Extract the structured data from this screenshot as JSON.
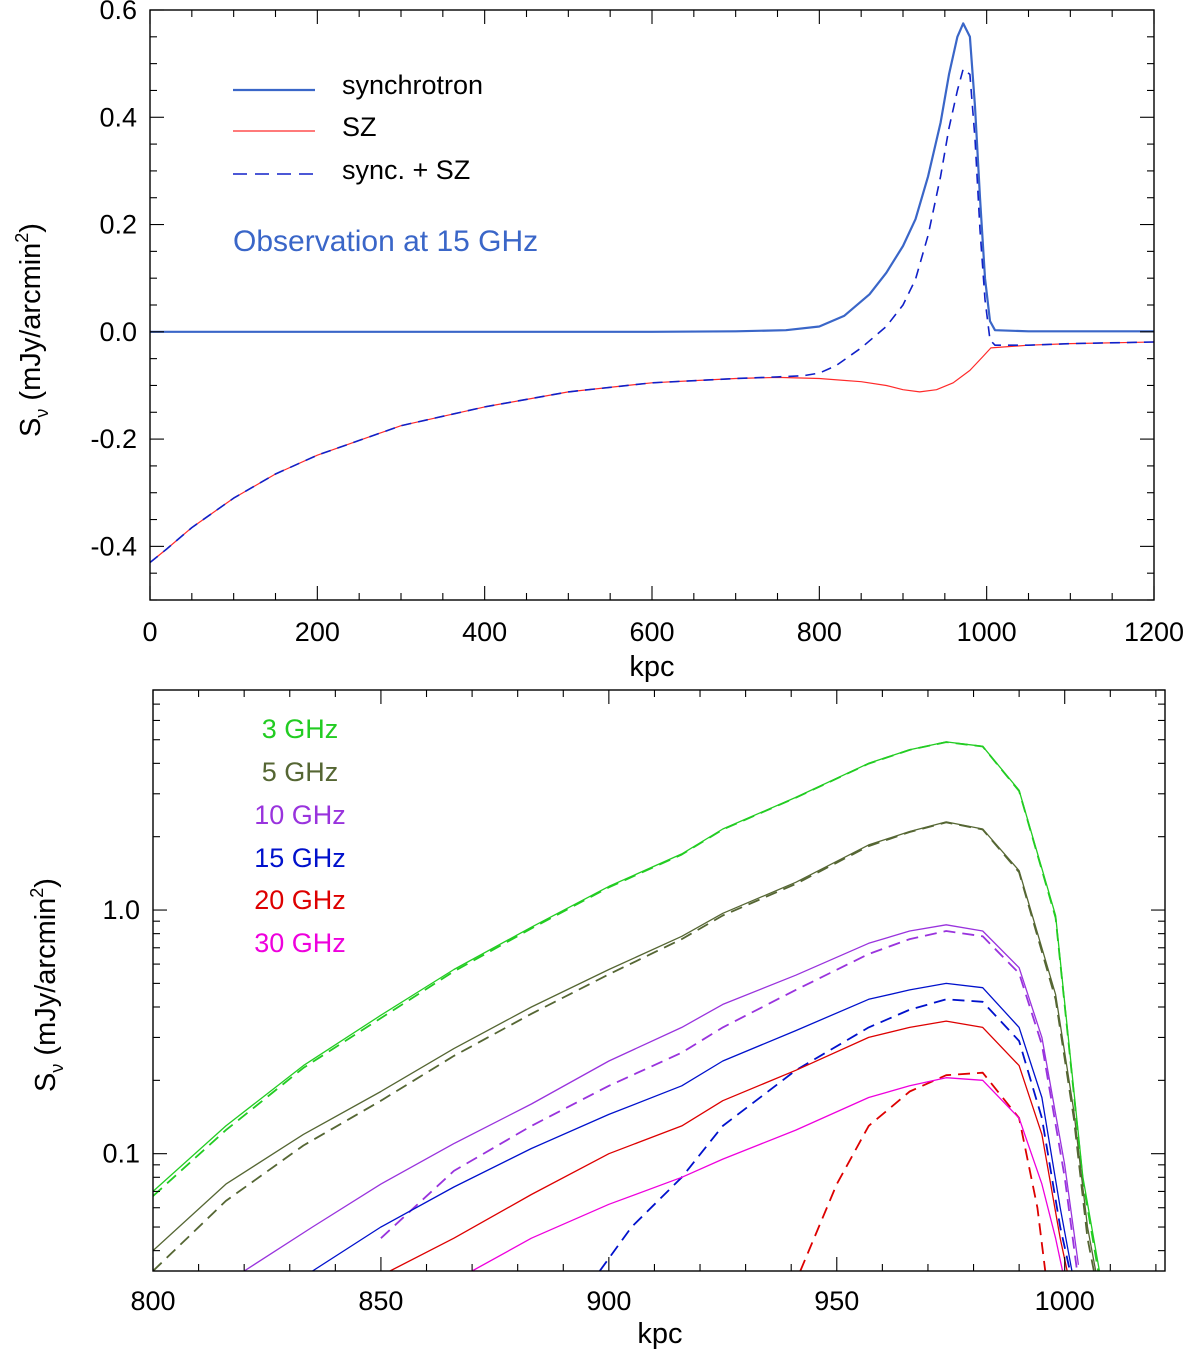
{
  "chart_data": [
    {
      "type": "line",
      "annotation": "Observation at 15 GHz",
      "xlabel": "kpc",
      "ylabel_main": "S",
      "ylabel_sub": "ν",
      "ylabel_unit": " (mJy/arcmin",
      "ylabel_sup": "2",
      "ylabel_close": ")",
      "xlim": [
        0,
        1200
      ],
      "ylim": [
        -0.5,
        0.6
      ],
      "xticks": [
        0,
        200,
        400,
        600,
        800,
        1000,
        1200
      ],
      "xtick_labels": [
        "0",
        "200",
        "400",
        "600",
        "800",
        "1000",
        "1200"
      ],
      "yticks": [
        -0.4,
        -0.2,
        0.0,
        0.2,
        0.4,
        0.6
      ],
      "ytick_labels": [
        "-0.4",
        "-0.2",
        "0.0",
        "0.2",
        "0.4",
        "0.6"
      ],
      "legend_position": "top-left",
      "series": [
        {
          "name": "synchrotron",
          "color": "#3a66c8",
          "dash": "solid",
          "width": 2.2,
          "x": [
            0,
            200,
            400,
            600,
            700,
            760,
            800,
            830,
            860,
            880,
            900,
            915,
            930,
            945,
            955,
            965,
            972,
            980,
            986,
            992,
            998,
            1004,
            1010,
            1050,
            1200
          ],
          "y": [
            0,
            0,
            0,
            0,
            0.001,
            0.003,
            0.01,
            0.03,
            0.07,
            0.11,
            0.16,
            0.21,
            0.29,
            0.39,
            0.48,
            0.55,
            0.575,
            0.55,
            0.42,
            0.25,
            0.1,
            0.02,
            0.003,
            0.001,
            0.001
          ]
        },
        {
          "name": "SZ",
          "color": "#ff2a2a",
          "dash": "solid",
          "width": 1.2,
          "x": [
            0,
            20,
            50,
            100,
            150,
            200,
            300,
            400,
            500,
            600,
            700,
            750,
            800,
            850,
            880,
            900,
            920,
            940,
            960,
            980,
            995,
            1005,
            1050,
            1100,
            1200
          ],
          "y": [
            -0.43,
            -0.405,
            -0.365,
            -0.31,
            -0.265,
            -0.23,
            -0.175,
            -0.14,
            -0.112,
            -0.095,
            -0.087,
            -0.085,
            -0.087,
            -0.093,
            -0.1,
            -0.108,
            -0.112,
            -0.108,
            -0.095,
            -0.072,
            -0.047,
            -0.03,
            -0.025,
            -0.022,
            -0.019
          ]
        },
        {
          "name": "sync. + SZ",
          "color": "#1020c8",
          "dash": "dashed",
          "width": 1.6,
          "x": [
            0,
            20,
            50,
            100,
            150,
            200,
            300,
            400,
            500,
            600,
            700,
            750,
            780,
            800,
            820,
            850,
            880,
            900,
            915,
            930,
            945,
            955,
            965,
            972,
            980,
            986,
            992,
            998,
            1004,
            1010,
            1050,
            1100,
            1200
          ],
          "y": [
            -0.43,
            -0.405,
            -0.365,
            -0.31,
            -0.265,
            -0.23,
            -0.175,
            -0.14,
            -0.112,
            -0.095,
            -0.087,
            -0.084,
            -0.082,
            -0.077,
            -0.063,
            -0.03,
            0.01,
            0.05,
            0.098,
            0.18,
            0.29,
            0.38,
            0.45,
            0.49,
            0.48,
            0.36,
            0.19,
            0.06,
            -0.015,
            -0.025,
            -0.025,
            -0.022,
            -0.019
          ]
        }
      ]
    },
    {
      "type": "line",
      "xlabel": "kpc",
      "ylabel_main": "S",
      "ylabel_sub": "ν",
      "ylabel_unit": " (mJy/arcmin",
      "ylabel_sup": "2",
      "ylabel_close": ")",
      "xlim": [
        800,
        1022
      ],
      "ylim": [
        0.033,
        8
      ],
      "yscale": "log",
      "xticks": [
        800,
        850,
        900,
        950,
        1000
      ],
      "xtick_labels": [
        "800",
        "850",
        "900",
        "950",
        "1000"
      ],
      "yticks": [
        0.1,
        1.0
      ],
      "ytick_labels": [
        "0.1",
        "1.0"
      ],
      "legend_position": "top-left",
      "legend": [
        "3 GHz",
        "5 GHz",
        "10 GHz",
        "15 GHz",
        "20 GHz",
        "30 GHz"
      ],
      "legend_colors": [
        "#22cc22",
        "#556633",
        "#9933dd",
        "#0011cc",
        "#dd0000",
        "#ee00dd"
      ],
      "series": [
        {
          "name": "3 GHz",
          "color": "#22cc22",
          "dash": "solid",
          "x": [
            800,
            816,
            833,
            850,
            866,
            883,
            900,
            916,
            925,
            941,
            957,
            966,
            974,
            982,
            990,
            998,
            1004,
            1008
          ],
          "y": [
            0.07,
            0.13,
            0.23,
            0.37,
            0.57,
            0.85,
            1.25,
            1.7,
            2.15,
            2.9,
            4.0,
            4.55,
            4.9,
            4.7,
            3.1,
            0.95,
            0.08,
            0.03
          ]
        },
        {
          "name": "3 GHz",
          "color": "#22cc22",
          "dash": "dashed",
          "x": [
            800,
            816,
            833,
            850,
            866,
            883,
            900,
            916,
            925,
            941,
            957,
            966,
            974,
            982,
            990,
            998,
            1004,
            1008
          ],
          "y": [
            0.067,
            0.125,
            0.225,
            0.36,
            0.56,
            0.84,
            1.24,
            1.69,
            2.14,
            2.89,
            3.99,
            4.54,
            4.89,
            4.69,
            3.08,
            0.93,
            0.077,
            0.028
          ]
        },
        {
          "name": "5 GHz",
          "color": "#556633",
          "dash": "solid",
          "x": [
            800,
            816,
            833,
            850,
            866,
            883,
            900,
            916,
            925,
            941,
            957,
            966,
            974,
            982,
            990,
            998,
            1002,
            1005,
            1008
          ],
          "y": [
            0.04,
            0.075,
            0.12,
            0.18,
            0.27,
            0.4,
            0.57,
            0.78,
            0.97,
            1.3,
            1.85,
            2.1,
            2.3,
            2.15,
            1.45,
            0.45,
            0.15,
            0.05,
            0.025
          ]
        },
        {
          "name": "5 GHz",
          "color": "#556633",
          "dash": "dashed",
          "x": [
            800,
            816,
            833,
            850,
            866,
            883,
            900,
            916,
            925,
            941,
            957,
            966,
            974,
            982,
            990,
            998,
            1002,
            1005,
            1008
          ],
          "y": [
            0.033,
            0.064,
            0.108,
            0.165,
            0.252,
            0.375,
            0.545,
            0.76,
            0.95,
            1.28,
            1.83,
            2.09,
            2.29,
            2.14,
            1.43,
            0.43,
            0.14,
            0.045,
            0.022
          ]
        },
        {
          "name": "10 GHz",
          "color": "#9933dd",
          "dash": "solid",
          "x": [
            820,
            835,
            850,
            866,
            883,
            900,
            916,
            925,
            941,
            957,
            966,
            974,
            982,
            990,
            995,
            1000,
            1003
          ],
          "y": [
            0.033,
            0.05,
            0.075,
            0.11,
            0.16,
            0.24,
            0.33,
            0.41,
            0.54,
            0.73,
            0.82,
            0.87,
            0.82,
            0.58,
            0.3,
            0.09,
            0.035
          ]
        },
        {
          "name": "10 GHz",
          "color": "#9933dd",
          "dash": "dashed",
          "x": [
            850,
            866,
            883,
            900,
            916,
            925,
            941,
            957,
            966,
            974,
            982,
            990,
            995,
            1000,
            1003
          ],
          "y": [
            0.045,
            0.085,
            0.13,
            0.19,
            0.26,
            0.33,
            0.47,
            0.66,
            0.76,
            0.82,
            0.78,
            0.55,
            0.28,
            0.08,
            0.03
          ]
        },
        {
          "name": "15 GHz",
          "color": "#0011cc",
          "dash": "solid",
          "x": [
            835,
            850,
            866,
            883,
            900,
            916,
            925,
            941,
            957,
            966,
            974,
            982,
            990,
            995,
            999,
            1002
          ],
          "y": [
            0.033,
            0.05,
            0.073,
            0.105,
            0.145,
            0.19,
            0.24,
            0.32,
            0.43,
            0.47,
            0.5,
            0.48,
            0.33,
            0.17,
            0.06,
            0.03
          ]
        },
        {
          "name": "15 GHz",
          "color": "#0011cc",
          "dash": "dashed",
          "x": [
            898,
            905,
            916,
            925,
            941,
            957,
            966,
            974,
            982,
            990,
            995,
            999,
            1002
          ],
          "y": [
            0.033,
            0.05,
            0.08,
            0.13,
            0.22,
            0.33,
            0.39,
            0.43,
            0.42,
            0.29,
            0.14,
            0.05,
            0.028
          ]
        },
        {
          "name": "20 GHz",
          "color": "#dd0000",
          "dash": "solid",
          "x": [
            852,
            866,
            883,
            900,
            916,
            925,
            941,
            957,
            966,
            974,
            982,
            990,
            995,
            999,
            1001
          ],
          "y": [
            0.033,
            0.045,
            0.068,
            0.1,
            0.13,
            0.165,
            0.22,
            0.3,
            0.33,
            0.35,
            0.33,
            0.23,
            0.12,
            0.045,
            0.03
          ]
        },
        {
          "name": "20 GHz",
          "color": "#dd0000",
          "dash": "dashed",
          "x": [
            942,
            950,
            957,
            966,
            974,
            982,
            990,
            994,
            996
          ],
          "y": [
            0.033,
            0.075,
            0.13,
            0.18,
            0.21,
            0.215,
            0.14,
            0.06,
            0.03
          ]
        },
        {
          "name": "30 GHz",
          "color": "#ee00dd",
          "dash": "solid",
          "x": [
            870,
            883,
            900,
            916,
            925,
            941,
            957,
            966,
            974,
            982,
            990,
            995,
            998,
            1000
          ],
          "y": [
            0.033,
            0.045,
            0.062,
            0.08,
            0.095,
            0.125,
            0.17,
            0.19,
            0.205,
            0.2,
            0.14,
            0.075,
            0.045,
            0.03
          ]
        }
      ]
    }
  ]
}
